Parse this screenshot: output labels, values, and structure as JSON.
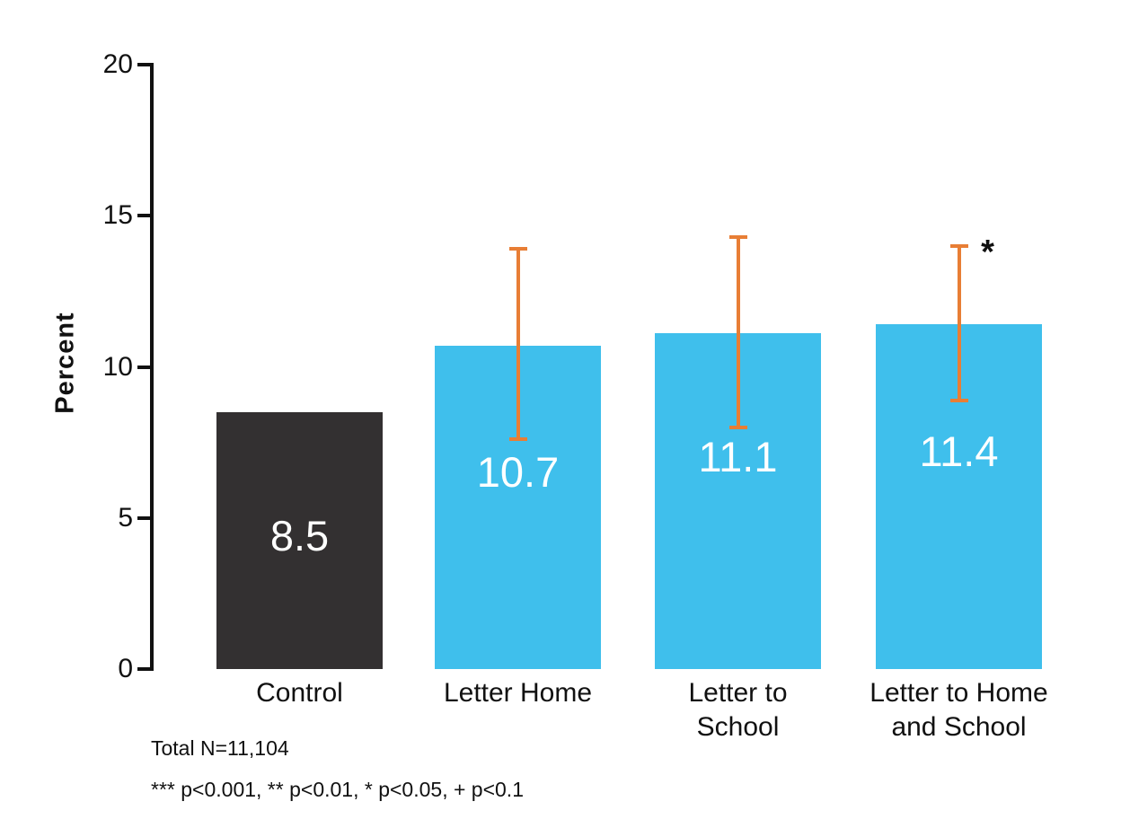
{
  "figure": {
    "footnotes": [
      "Total N=11,104",
      "*** p<0.001, ** p<0.01, * p<0.05, + p<0.1"
    ]
  },
  "chart_data": {
    "type": "bar",
    "title": "",
    "xlabel": "",
    "ylabel": "Percent",
    "ylim": [
      0,
      20
    ],
    "yticks": [
      0,
      5,
      10,
      15,
      20
    ],
    "grid": false,
    "legend": "none",
    "categories": [
      "Control",
      "Letter Home",
      "Letter to School",
      "Letter to Home and School"
    ],
    "series": [
      {
        "name": "Percent",
        "values": [
          8.5,
          10.7,
          11.1,
          11.4
        ]
      }
    ],
    "bars": [
      {
        "category": "Control",
        "category_lines": [
          "Control"
        ],
        "value": 8.5,
        "value_label": "8.5",
        "color_key": "control_bar",
        "ci_low": null,
        "ci_high": null,
        "significance": "",
        "value_label_y": 4.4
      },
      {
        "category": "Letter Home",
        "category_lines": [
          "Letter Home"
        ],
        "value": 10.7,
        "value_label": "10.7",
        "color_key": "treatment_bar",
        "ci_low": 7.6,
        "ci_high": 13.9,
        "significance": "",
        "value_label_y": 6.5
      },
      {
        "category": "Letter to School",
        "category_lines": [
          "Letter to",
          "School"
        ],
        "value": 11.1,
        "value_label": "11.1",
        "color_key": "treatment_bar",
        "ci_low": 8.0,
        "ci_high": 14.3,
        "significance": "",
        "value_label_y": 7.0
      },
      {
        "category": "Letter to Home and School",
        "category_lines": [
          "Letter to Home",
          "and School"
        ],
        "value": 11.4,
        "value_label": "11.4",
        "color_key": "treatment_bar",
        "ci_low": 8.9,
        "ci_high": 14.0,
        "significance": "*",
        "value_label_y": 7.2
      }
    ],
    "colors": {
      "control_bar": "#333031",
      "treatment_bar": "#3FBFEC",
      "error_bar": "#E87E35",
      "value_label": "#FFFFFF",
      "axis": "#111111"
    }
  }
}
